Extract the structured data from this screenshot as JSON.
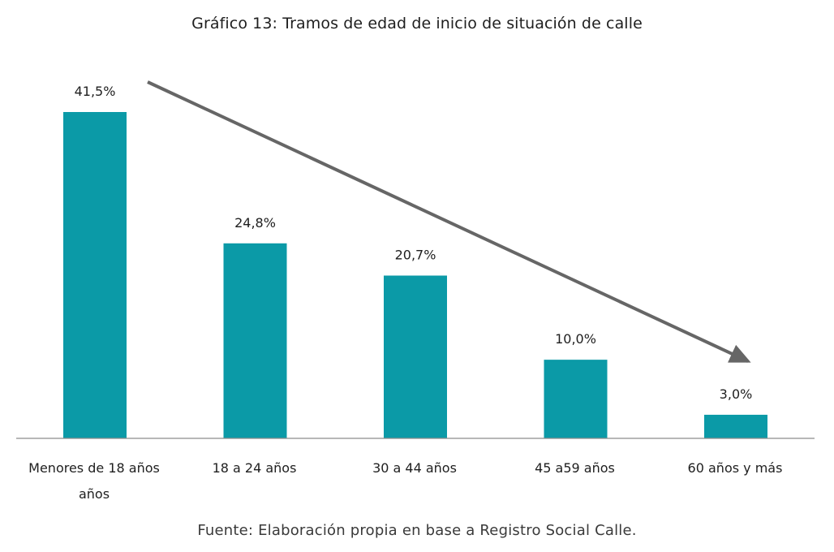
{
  "chart_data": {
    "type": "bar",
    "title": "Gráfico 13: Tramos de edad de inicio de situación de calle",
    "categories": [
      [
        "Menores de 18 años",
        "años"
      ],
      [
        "18 a 24 años"
      ],
      [
        "30 a 44 años"
      ],
      [
        "45 a59 años"
      ],
      [
        "60 años y más"
      ]
    ],
    "values": [
      41.5,
      24.8,
      20.7,
      10.0,
      3.0
    ],
    "value_labels": [
      "41,5%",
      "24,8%",
      "20,7%",
      "10,0%",
      "3,0%"
    ],
    "unit": "%",
    "xlabel": "",
    "ylabel": "",
    "ylim": [
      0,
      41.5
    ],
    "grid": false,
    "legend": "none",
    "annotations": [
      "trend-arrow-decreasing"
    ]
  },
  "source": "Fuente: Elaboración propia en base a Registro Social Calle.",
  "colors": {
    "bar": "#0b9aa7",
    "arrow": "#666666",
    "axis": "#8c8c8c"
  }
}
